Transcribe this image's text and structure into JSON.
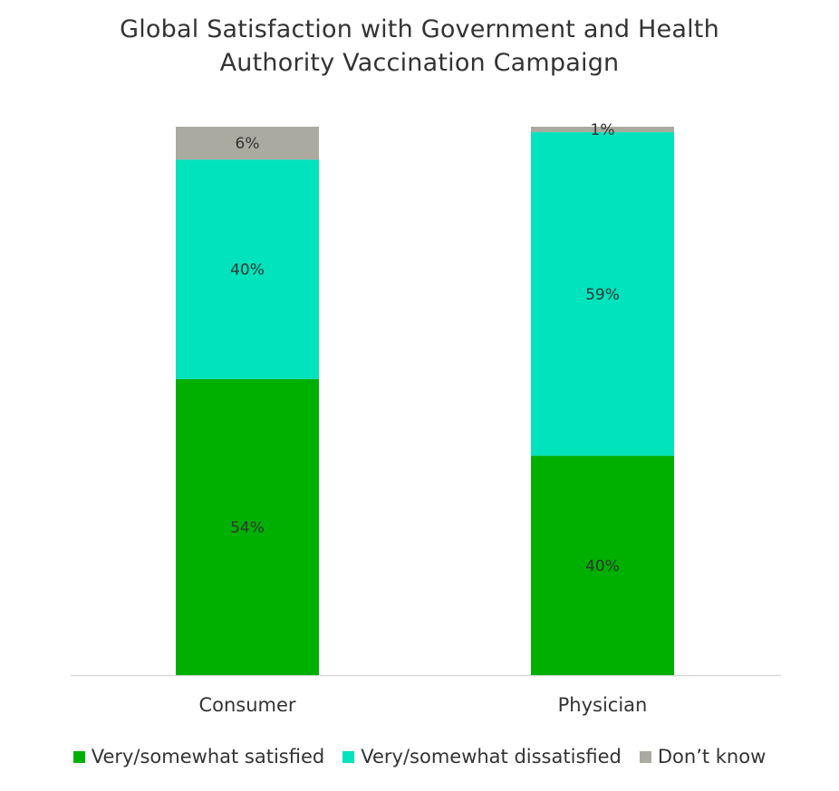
{
  "title_line1": "Global Satisfaction with Government and Health",
  "title_line2": "Authority Vaccination Campaign",
  "chart_data": {
    "type": "bar",
    "stacked": true,
    "title": "Global Satisfaction with Government and Health Authority Vaccination Campaign",
    "categories": [
      "Consumer",
      "Physician"
    ],
    "series": [
      {
        "name": "Very/somewhat satisfied",
        "values": [
          54,
          40
        ],
        "labels": [
          "54%",
          "40%"
        ],
        "color": "#00b000"
      },
      {
        "name": "Very/somewhat dissatisfied",
        "values": [
          40,
          59
        ],
        "labels": [
          "40%",
          "59%"
        ],
        "color": "#00e3bd"
      },
      {
        "name": "Don’t know",
        "values": [
          6,
          1
        ],
        "labels": [
          "6%",
          "1%"
        ],
        "color": "#aaaaa0"
      }
    ],
    "ylim": [
      0,
      100
    ],
    "grid": false,
    "legend_position": "bottom",
    "axis_line_color": "#d9d9d9"
  }
}
